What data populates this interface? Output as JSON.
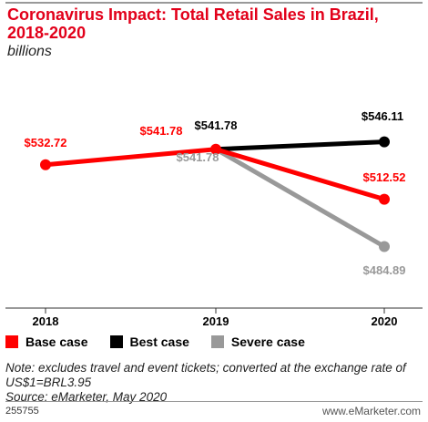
{
  "header": {
    "title": "Coronavirus Impact: Total Retail Sales in Brazil, 2018-2020",
    "subtitle": "billions"
  },
  "chart_data": {
    "type": "line",
    "x": [
      "2018",
      "2019",
      "2020"
    ],
    "ylim": [
      450,
      580
    ],
    "grid": false,
    "legend_position": "bottom",
    "series": [
      {
        "name": "Base case",
        "color": "#ff0000",
        "values": [
          532.72,
          541.78,
          512.52
        ],
        "labels": [
          "$532.72",
          "$541.78",
          "$512.52"
        ]
      },
      {
        "name": "Best case",
        "color": "#000000",
        "values": [
          null,
          541.78,
          546.11
        ],
        "labels": [
          "",
          "$541.78",
          "$546.11"
        ]
      },
      {
        "name": "Severe case",
        "color": "#999999",
        "values": [
          null,
          541.78,
          484.89
        ],
        "labels": [
          "",
          "$541.78",
          "$484.89"
        ]
      }
    ]
  },
  "notes": {
    "note": "Note: excludes travel and event tickets; converted at the exchange rate of US$1=BRL3.95",
    "source": "Source: eMarketer, May 2020"
  },
  "footer": {
    "id": "255755",
    "logo": "www.eMarketer.com"
  }
}
